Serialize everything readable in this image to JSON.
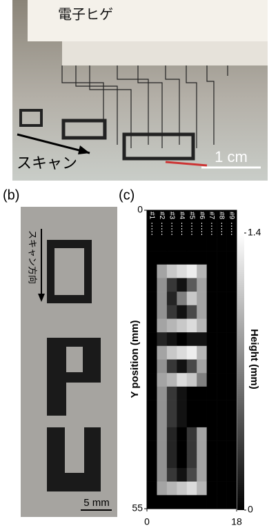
{
  "panel_a": {
    "label_whiskers": "電子ヒゲ",
    "label_scan": "スキャン",
    "scale_bar": "1 cm"
  },
  "panel_b": {
    "panel_label": "(b)",
    "scan_direction": "スキャン方向",
    "scale_bar": "5 mm"
  },
  "chart_data": {
    "type": "heatmap",
    "panel_label": "(c)",
    "y_label": "Y position (mm)",
    "colorbar_label": "Height (mm)",
    "categories": [
      "#1",
      "#2",
      "#3",
      "#4",
      "#5",
      "#6",
      "#7",
      "#8",
      "#9"
    ],
    "y": [
      0,
      2.5,
      5,
      7.5,
      10,
      12.5,
      15,
      17.5,
      20,
      22.5,
      25,
      27.5,
      30,
      32.5,
      35,
      37.5,
      40,
      42.5,
      45,
      47.5,
      50,
      52.5
    ],
    "xlim": [
      0,
      18
    ],
    "xticks": [
      0,
      18
    ],
    "ylim": [
      0,
      55
    ],
    "yticks": [
      0,
      55
    ],
    "zlim": [
      0,
      1.4
    ],
    "zticks": [
      0,
      1.4
    ],
    "values": [
      [
        0,
        0,
        0,
        0,
        0,
        0,
        0,
        0,
        0
      ],
      [
        0,
        0,
        0,
        0,
        0,
        0,
        0,
        0,
        0
      ],
      [
        0,
        0,
        0,
        0,
        0,
        0,
        0,
        0,
        0
      ],
      [
        0,
        0,
        0,
        0,
        0,
        0,
        0,
        0,
        0
      ],
      [
        0,
        0.9,
        1.1,
        1.2,
        1.3,
        1.0,
        0,
        0,
        0
      ],
      [
        0,
        0.8,
        0.3,
        0.1,
        0.5,
        0.9,
        0,
        0,
        0
      ],
      [
        0,
        0.8,
        0.2,
        0.7,
        1.1,
        0.9,
        0,
        0,
        0
      ],
      [
        0,
        0.8,
        0.3,
        0.1,
        0.4,
        0.9,
        0,
        0,
        0
      ],
      [
        0,
        0.9,
        1.0,
        1.1,
        1.2,
        1.0,
        0,
        0,
        0
      ],
      [
        0,
        0.2,
        0.1,
        0,
        0.1,
        0.1,
        0,
        0,
        0
      ],
      [
        0,
        0.9,
        1.1,
        1.2,
        1.3,
        1.0,
        0,
        0,
        0
      ],
      [
        0,
        0.8,
        0.3,
        0.1,
        0.4,
        0.9,
        0,
        0,
        0
      ],
      [
        0,
        0.9,
        1.0,
        1.2,
        1.1,
        0.7,
        0,
        0,
        0
      ],
      [
        0,
        0.8,
        0.3,
        0.1,
        0,
        0,
        0,
        0,
        0
      ],
      [
        0,
        0.8,
        0.3,
        0.1,
        0,
        0,
        0,
        0,
        0
      ],
      [
        0,
        0.8,
        0.3,
        0.1,
        0,
        0,
        0,
        0,
        0
      ],
      [
        0,
        0.8,
        0.2,
        0,
        0.3,
        0.9,
        0,
        0,
        0
      ],
      [
        0,
        0.8,
        0.2,
        0,
        0.3,
        0.9,
        0,
        0,
        0
      ],
      [
        0,
        0.8,
        0.2,
        0,
        0.3,
        0.9,
        0,
        0,
        0
      ],
      [
        0,
        0.8,
        0.3,
        0.1,
        0.4,
        0.9,
        0,
        0,
        0
      ],
      [
        0,
        0.9,
        1.0,
        1.1,
        1.2,
        1.0,
        0,
        0,
        0
      ],
      [
        0,
        0,
        0,
        0,
        0,
        0,
        0,
        0,
        0
      ]
    ]
  }
}
